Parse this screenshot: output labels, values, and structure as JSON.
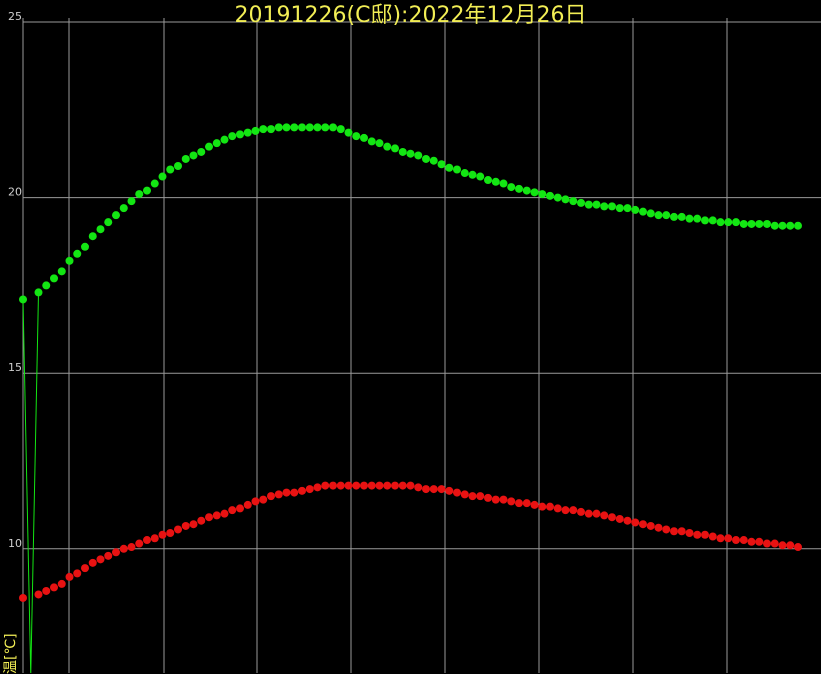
{
  "chart_data": {
    "type": "scatter",
    "title": "20191226(C邸):2022年12月26日",
    "ylabel": "温[℃]",
    "xlabel": "",
    "ylim": [
      6.4,
      25
    ],
    "ytick_labels": [
      "25",
      "20",
      "15",
      "10"
    ],
    "xlim": [
      0,
      100
    ],
    "grid": true,
    "series": [
      {
        "color": "#13e613",
        "marker": "dot",
        "x": [
          0,
          2,
          3,
          4,
          5,
          6,
          7,
          8,
          9,
          10,
          11,
          12,
          13,
          14,
          15,
          16,
          17,
          18,
          19,
          20,
          21,
          22,
          23,
          24,
          25,
          26,
          27,
          28,
          29,
          30,
          31,
          32,
          33,
          34,
          35,
          36,
          37,
          38,
          39,
          40,
          41,
          42,
          43,
          44,
          45,
          46,
          47,
          48,
          49,
          50,
          51,
          52,
          53,
          54,
          55,
          56,
          57,
          58,
          59,
          60,
          61,
          62,
          63,
          64,
          65,
          66,
          67,
          68,
          69,
          70,
          71,
          72,
          73,
          74,
          75,
          76,
          77,
          78,
          79,
          80,
          81,
          82,
          83,
          84,
          85,
          86,
          87,
          88,
          89,
          90,
          91,
          92,
          93,
          94,
          95,
          96,
          97,
          98,
          99,
          100
        ],
        "values": [
          17.1,
          17.3,
          17.5,
          17.7,
          17.9,
          18.2,
          18.4,
          18.6,
          18.9,
          19.1,
          19.3,
          19.5,
          19.7,
          19.9,
          20.1,
          20.2,
          20.4,
          20.6,
          20.8,
          20.9,
          21.1,
          21.2,
          21.3,
          21.45,
          21.55,
          21.65,
          21.75,
          21.8,
          21.85,
          21.9,
          21.95,
          21.95,
          22.0,
          22.0,
          22.0,
          22.0,
          22.0,
          22.0,
          22.0,
          22.0,
          21.95,
          21.85,
          21.75,
          21.7,
          21.6,
          21.55,
          21.45,
          21.4,
          21.3,
          21.25,
          21.2,
          21.1,
          21.05,
          20.95,
          20.85,
          20.8,
          20.7,
          20.65,
          20.6,
          20.5,
          20.45,
          20.4,
          20.3,
          20.25,
          20.2,
          20.15,
          20.1,
          20.05,
          20.0,
          19.95,
          19.9,
          19.85,
          19.8,
          19.8,
          19.75,
          19.75,
          19.7,
          19.7,
          19.65,
          19.6,
          19.55,
          19.5,
          19.5,
          19.45,
          19.45,
          19.4,
          19.4,
          19.35,
          19.35,
          19.3,
          19.3,
          19.3,
          19.25,
          19.25,
          19.25,
          19.25,
          19.2,
          19.2,
          19.2,
          19.2
        ]
      },
      {
        "color": "#e81212",
        "marker": "dot",
        "x": [
          0,
          2,
          3,
          4,
          5,
          6,
          7,
          8,
          9,
          10,
          11,
          12,
          13,
          14,
          15,
          16,
          17,
          18,
          19,
          20,
          21,
          22,
          23,
          24,
          25,
          26,
          27,
          28,
          29,
          30,
          31,
          32,
          33,
          34,
          35,
          36,
          37,
          38,
          39,
          40,
          41,
          42,
          43,
          44,
          45,
          46,
          47,
          48,
          49,
          50,
          51,
          52,
          53,
          54,
          55,
          56,
          57,
          58,
          59,
          60,
          61,
          62,
          63,
          64,
          65,
          66,
          67,
          68,
          69,
          70,
          71,
          72,
          73,
          74,
          75,
          76,
          77,
          78,
          79,
          80,
          81,
          82,
          83,
          84,
          85,
          86,
          87,
          88,
          89,
          90,
          91,
          92,
          93,
          94,
          95,
          96,
          97,
          98,
          99,
          100
        ],
        "values": [
          8.6,
          8.7,
          8.8,
          8.9,
          9.0,
          9.2,
          9.3,
          9.45,
          9.6,
          9.7,
          9.8,
          9.9,
          10.0,
          10.05,
          10.15,
          10.25,
          10.3,
          10.4,
          10.45,
          10.55,
          10.65,
          10.7,
          10.8,
          10.9,
          10.95,
          11.0,
          11.1,
          11.15,
          11.25,
          11.35,
          11.4,
          11.5,
          11.55,
          11.6,
          11.6,
          11.65,
          11.7,
          11.75,
          11.8,
          11.8,
          11.8,
          11.8,
          11.8,
          11.8,
          11.8,
          11.8,
          11.8,
          11.8,
          11.8,
          11.8,
          11.75,
          11.7,
          11.7,
          11.7,
          11.65,
          11.6,
          11.55,
          11.5,
          11.5,
          11.45,
          11.4,
          11.4,
          11.35,
          11.3,
          11.3,
          11.25,
          11.2,
          11.2,
          11.15,
          11.1,
          11.1,
          11.05,
          11.0,
          11.0,
          10.95,
          10.9,
          10.85,
          10.8,
          10.75,
          10.7,
          10.65,
          10.6,
          10.55,
          10.5,
          10.5,
          10.45,
          10.4,
          10.4,
          10.35,
          10.3,
          10.3,
          10.25,
          10.25,
          10.2,
          10.2,
          10.15,
          10.15,
          10.1,
          10.1,
          10.05
        ]
      }
    ],
    "dropout_line": {
      "color": "#13e613",
      "x": [
        0,
        1,
        2
      ],
      "values": [
        17.1,
        6.4,
        17.3
      ]
    }
  },
  "colors": {
    "background": "#000000",
    "grid": "#9a9a9a",
    "tick_label": "#cfcfcf",
    "title": "#f2ee55"
  }
}
